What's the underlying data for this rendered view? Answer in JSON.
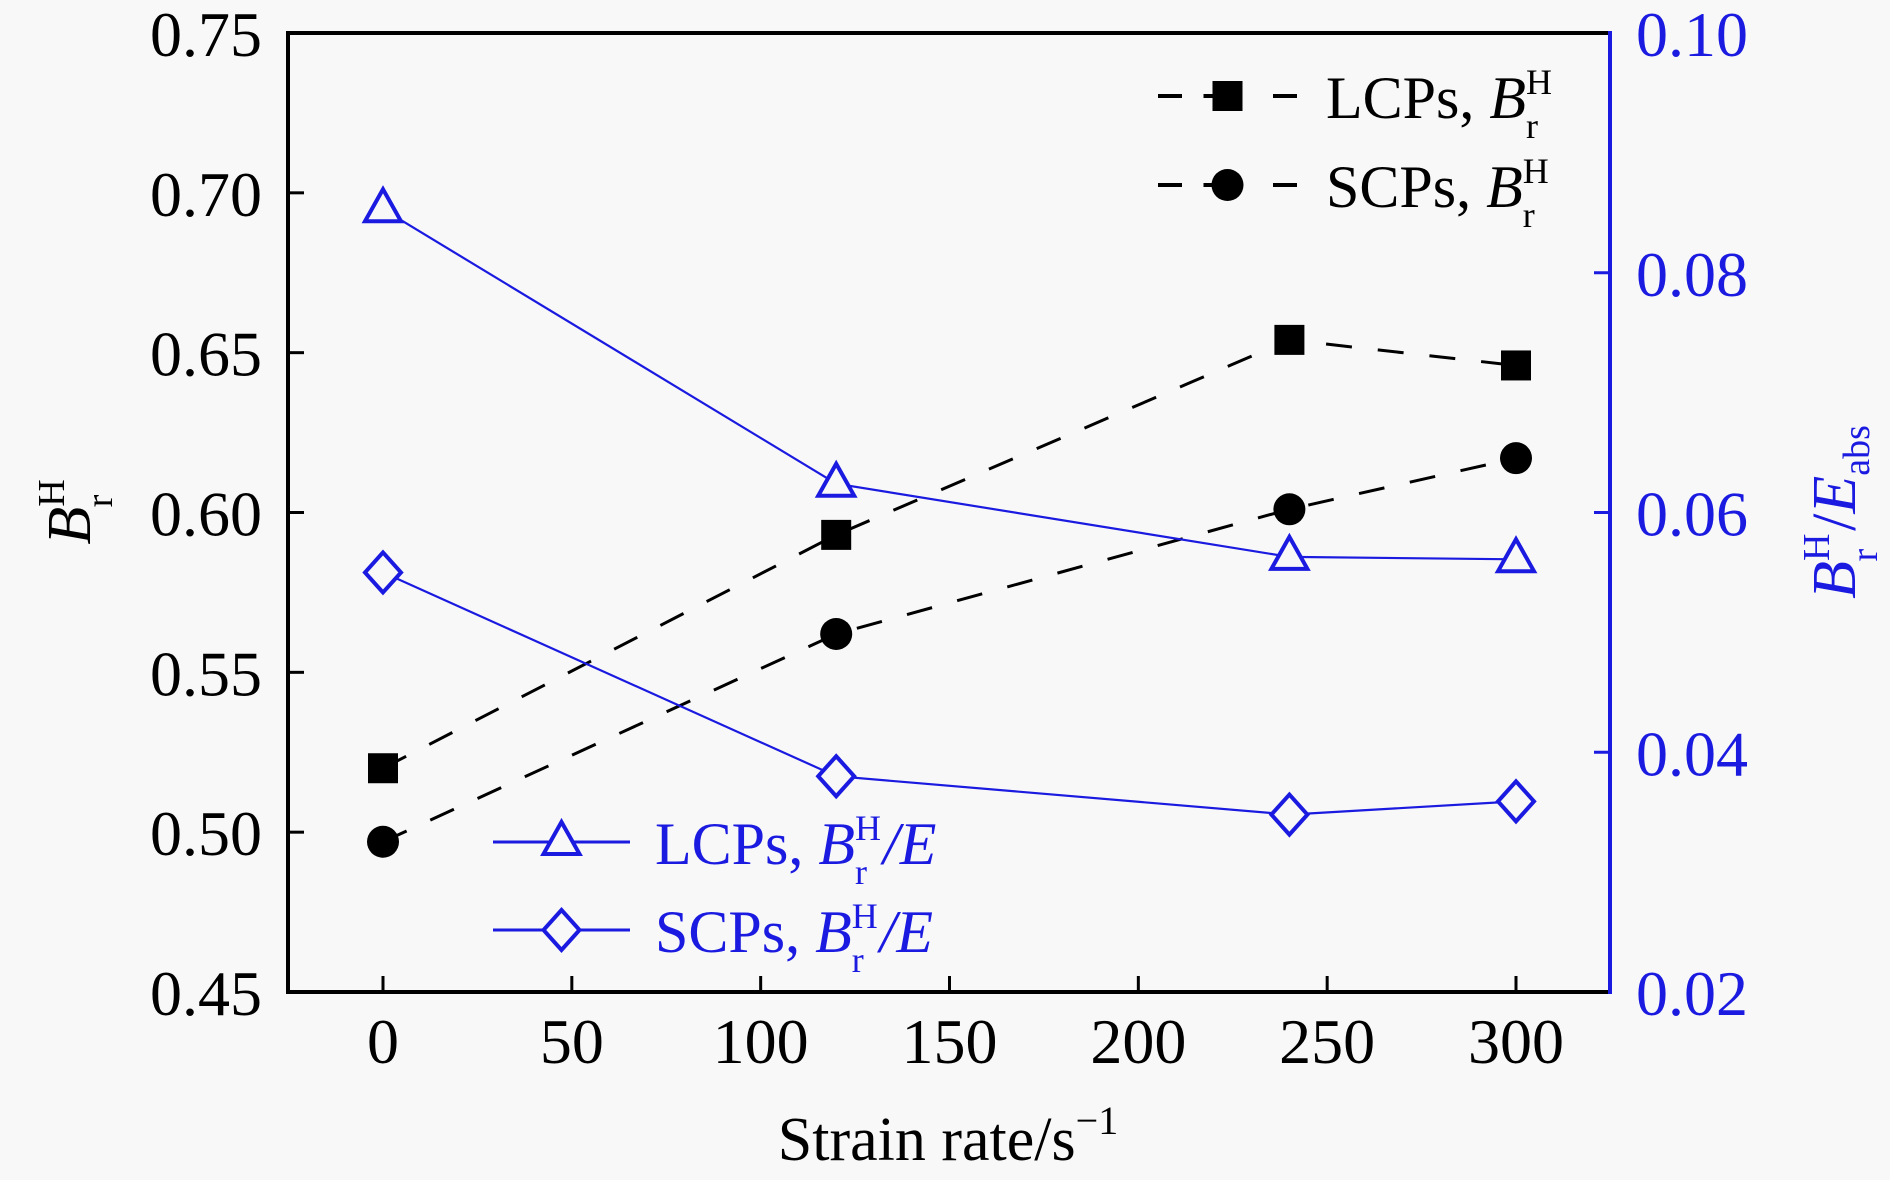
{
  "chart_data": {
    "type": "line",
    "title": "",
    "xlabel": "Strain rate/s",
    "xlabel_superscript": "−1",
    "ylabel_left": {
      "base": "B",
      "sup": "H",
      "sub": "r"
    },
    "ylabel_right": {
      "base": "B",
      "sup": "H",
      "sub": "r",
      "slash": "/",
      "base2": "E",
      "sub2": "abs"
    },
    "xlim": [
      -25,
      325
    ],
    "ylim_left": [
      0.45,
      0.75
    ],
    "ylim_right": [
      0.02,
      0.1
    ],
    "x_ticks": [
      0,
      50,
      100,
      150,
      200,
      250,
      300
    ],
    "x_tick_labels": [
      "0",
      "50",
      "100",
      "150",
      "200",
      "250",
      "300"
    ],
    "y_left_ticks": [
      0.45,
      0.5,
      0.55,
      0.6,
      0.65,
      0.7,
      0.75
    ],
    "y_left_tick_labels": [
      "0.45",
      "0.50",
      "0.55",
      "0.60",
      "0.65",
      "0.70",
      "0.75"
    ],
    "y_right_ticks": [
      0.02,
      0.04,
      0.06,
      0.08,
      0.1
    ],
    "y_right_tick_labels": [
      "0.02",
      "0.04",
      "0.06",
      "0.08",
      "0.10"
    ],
    "grid": false,
    "x": [
      0,
      120,
      240,
      300
    ],
    "series": [
      {
        "name": "LCPs, B_r^H",
        "axis": "left",
        "marker": "square",
        "line": "dashed",
        "color": "#000000",
        "values": [
          0.52,
          0.593,
          0.654,
          0.646
        ],
        "legend": {
          "prefix": "LCPs, ",
          "base": "B",
          "sup": "H",
          "sub": "r",
          "suffix": ""
        }
      },
      {
        "name": "SCPs, B_r^H",
        "axis": "left",
        "marker": "circle",
        "line": "dashed",
        "color": "#000000",
        "values": [
          0.497,
          0.562,
          0.601,
          0.617
        ],
        "legend": {
          "prefix": "SCPs, ",
          "base": "B",
          "sup": "H",
          "sub": "r",
          "suffix": ""
        }
      },
      {
        "name": "LCPs, B_r^H/E",
        "axis": "right",
        "marker": "triangle",
        "line": "solid",
        "color": "#1a1ae0",
        "values": [
          0.0853,
          0.0624,
          0.0563,
          0.0561
        ],
        "legend": {
          "prefix": "LCPs, ",
          "base": "B",
          "sup": "H",
          "sub": "r",
          "suffix": "/E"
        }
      },
      {
        "name": "SCPs, B_r^H/E",
        "axis": "right",
        "marker": "diamond",
        "line": "solid",
        "color": "#1a1ae0",
        "values": [
          0.055,
          0.038,
          0.0348,
          0.0359
        ],
        "legend": {
          "prefix": "SCPs, ",
          "base": "B",
          "sup": "H",
          "sub": "r",
          "suffix": "/E"
        }
      }
    ],
    "legend_placement": [
      "top-right",
      "bottom-left"
    ],
    "colors": {
      "left_axis": "#000000",
      "right_axis": "#1a1ae0",
      "background": "#f8f8f8"
    }
  }
}
